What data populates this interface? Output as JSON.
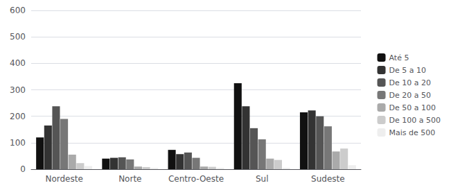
{
  "chart_data": {
    "type": "bar",
    "categories": [
      "Nordeste",
      "Norte",
      "Centro-Oeste",
      "Sul",
      "Sudeste"
    ],
    "series": [
      {
        "name": "Até 5",
        "color": "#111111",
        "values": [
          120,
          40,
          73,
          325,
          215
        ]
      },
      {
        "name": "De 5 a 10",
        "color": "#333333",
        "values": [
          165,
          43,
          57,
          238,
          222
        ]
      },
      {
        "name": "De 10 a 20",
        "color": "#555555",
        "values": [
          238,
          45,
          63,
          155,
          200
        ]
      },
      {
        "name": "De 20 a 50",
        "color": "#777777",
        "values": [
          190,
          37,
          43,
          113,
          162
        ]
      },
      {
        "name": "De 50 a 100",
        "color": "#aaaaaa",
        "values": [
          55,
          10,
          10,
          40,
          67
        ]
      },
      {
        "name": "De 100 a 500",
        "color": "#cccccc",
        "values": [
          23,
          8,
          9,
          35,
          78
        ]
      },
      {
        "name": "Mais de 500",
        "color": "#eeeeee",
        "values": [
          12,
          5,
          5,
          5,
          15
        ]
      }
    ],
    "ylim": [
      0,
      600
    ],
    "yticks": [
      0,
      100,
      200,
      300,
      400,
      500,
      600
    ],
    "grid": true,
    "legend": "right"
  }
}
